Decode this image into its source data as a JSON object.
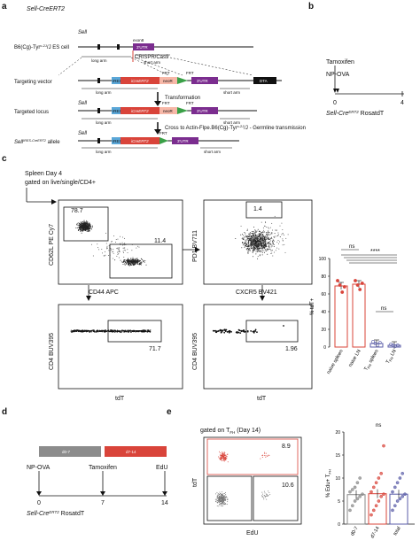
{
  "panels": {
    "a": "a",
    "b": "b",
    "c": "c",
    "d": "d",
    "e": "e"
  },
  "a": {
    "title": "Sell-CreERT2",
    "es_cell": "B6(Cg)-Tyr",
    "es_cell_sup": "c-2J",
    "es_cell_suffix": "/J ES cell",
    "gene": "Sell",
    "exon": "exon8",
    "utr": "3'UTR",
    "crispr": "CRISPR/Cas9",
    "short_arm": "short arm",
    "long_arm": "long arm",
    "targeting_vector": "Targeting vector",
    "ires": "IRES",
    "icreert2": "iCreERT2",
    "neo": "neoR",
    "frt": "FRT",
    "dta": "DTA",
    "transformation": "Transformation",
    "targeted_locus": "Targeted locus",
    "cross": "Cross to Actin-Flpe.B6(Cg)-Tyr",
    "cross_sup": "c-2J",
    "cross_suffix": "/J - Germline transmission",
    "allele": "Sell",
    "allele_sup": "IRES-CreERT2",
    "allele_suffix": " allele"
  },
  "b": {
    "tamoxifen": "Tamoxifen",
    "np_ova": "NP-OVA",
    "tick0": "0",
    "tick4": "4",
    "mouse": "Sell-Cre",
    "mouse_sup": "ERT2",
    "mouse_suffix": " RosatdT"
  },
  "c": {
    "header1": "Spleen  Day 4",
    "header2": "gated on live/single/CD4+",
    "f1": {
      "y": "CD62L PE Cy7",
      "x": "CD44 APC",
      "g1": "78.7",
      "g2": "11.4"
    },
    "f2": {
      "y": "PD1 BV711",
      "x": "CXCR5 BV421",
      "g1": "1.4"
    },
    "f3": {
      "y": "CD4 BUV395",
      "x": "tdT",
      "g1": "71.7"
    },
    "f4": {
      "y": "CD4 BUV395",
      "x": "tdT",
      "g1": "1.96"
    },
    "chart": {
      "ylabel": "% tdT+",
      "sig1": "ns",
      "sig2": "****",
      "sig3": "ns",
      "yticks": [
        "0",
        "20",
        "40",
        "60",
        "80",
        "100"
      ],
      "cats": [
        "naive spleen",
        "naive LN",
        "T",
        "T"
      ],
      "cat_sub": [
        "",
        "",
        "FH",
        "FH"
      ],
      "cat_suffix": [
        "",
        "",
        " spleen",
        " LN"
      ]
    }
  },
  "d": {
    "box1": "d0-7",
    "box2": "d7-14",
    "np_ova": "NP-OVA",
    "tamoxifen": "Tamoxifen",
    "edu": "EdU",
    "t0": "0",
    "t7": "7",
    "t14": "14",
    "mouse": "Sell-Cre",
    "mouse_sup": "ERT2",
    "mouse_suffix": " RosatdT"
  },
  "e": {
    "gate": "gated on T",
    "gate_sub": "FH",
    "gate_suffix": " (Day 14)",
    "flow": {
      "y": "tdT",
      "x": "EdU",
      "g1": "8.9",
      "g2": "10.6"
    },
    "chart": {
      "sig": "ns",
      "ylabel": "% Edu+ T",
      "ylabel_sub": "FH",
      "yticks": [
        "0",
        "5",
        "10",
        "15",
        "20"
      ],
      "cats": [
        "d0-7",
        "d7-14",
        "total"
      ]
    }
  },
  "chart_data": [
    {
      "type": "bar",
      "categories": [
        "naive spleen",
        "naive LN",
        "TFH spleen",
        "TFH LN"
      ],
      "values": [
        69,
        71,
        4,
        2
      ],
      "points": [
        [
          75,
          70,
          62,
          68
        ],
        [
          75,
          70,
          65,
          72
        ],
        [
          6,
          4,
          2,
          5
        ],
        [
          3,
          2,
          1,
          2
        ]
      ],
      "ylabel": "% tdT+",
      "ylim": [
        0,
        100
      ],
      "colors": [
        "#d9443a",
        "#d9443a",
        "#5b5ea8",
        "#5b5ea8"
      ]
    },
    {
      "type": "bar",
      "categories": [
        "d0-7",
        "d7-14",
        "total"
      ],
      "values": [
        6.4,
        6.6,
        6.5
      ],
      "points": [
        [
          3,
          4,
          5,
          5.5,
          6,
          6.5,
          7,
          7.5,
          8,
          9,
          10
        ],
        [
          2,
          3,
          4,
          5,
          6,
          6.5,
          7,
          8,
          9,
          10,
          11,
          17
        ],
        [
          3,
          4,
          5,
          5.5,
          6,
          6.5,
          7,
          8,
          9,
          10,
          11
        ]
      ],
      "ylabel": "% Edu+ TFH",
      "ylim": [
        0,
        20
      ],
      "colors": [
        "#888888",
        "#d9443a",
        "#5b5ea8"
      ]
    }
  ]
}
